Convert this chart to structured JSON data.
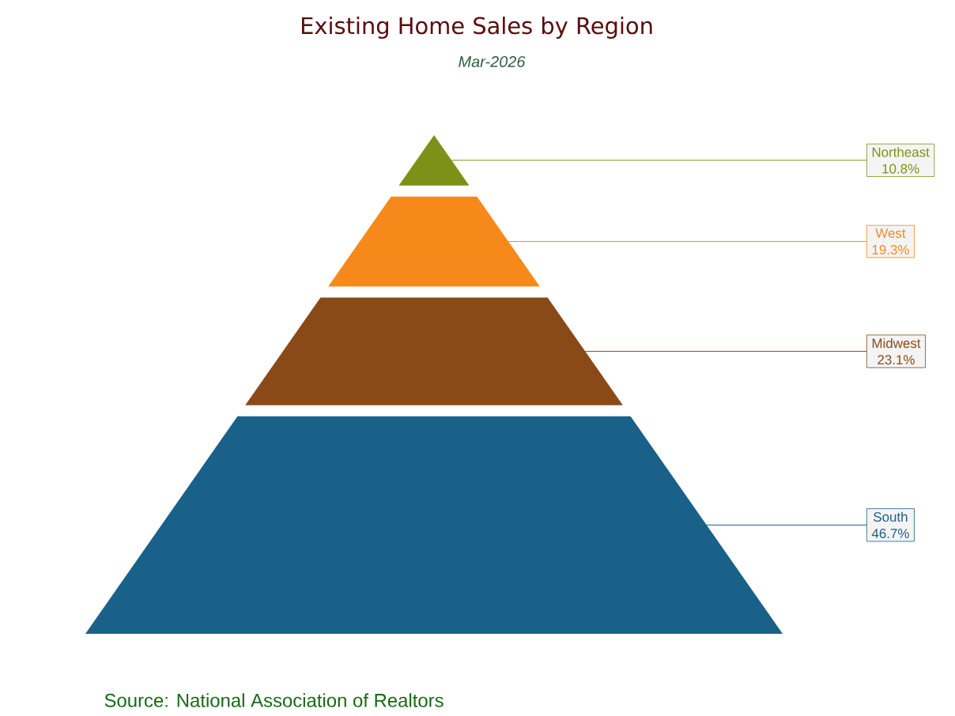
{
  "chart_data": {
    "type": "other",
    "title": "Existing Home Sales by Region",
    "subtitle": "Mar-2026",
    "categories": [
      "Northeast",
      "West",
      "Midwest",
      "South"
    ],
    "values": [
      10.8,
      19.3,
      23.1,
      46.7
    ],
    "value_labels": [
      "10.8%",
      "19.3%",
      "23.1%",
      "46.7%"
    ],
    "colors": [
      "#7d9118",
      "#f7891a",
      "#8a4a18",
      "#1a6189"
    ],
    "annotations": [
      "Source: National Association of Realtors"
    ]
  }
}
